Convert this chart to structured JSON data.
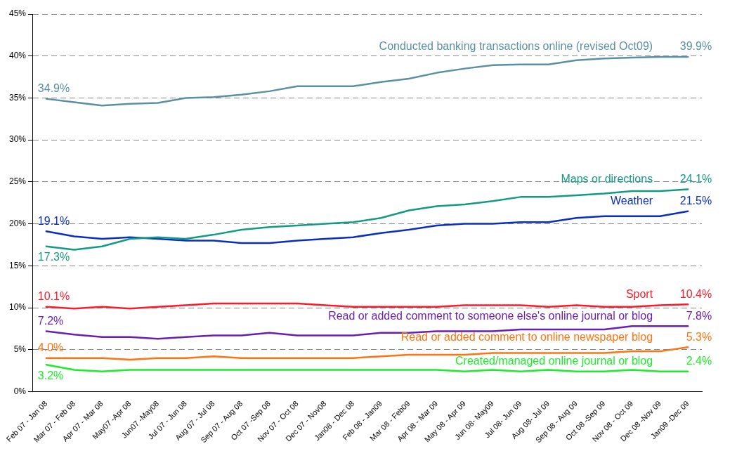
{
  "chart_data": {
    "type": "line",
    "categories": [
      "Feb 07 - Jan 08",
      "Mar 07 - Feb 08",
      "Apr 07 - Mar 08",
      "May07 -Apr 08",
      "Jun07 -May08",
      "Jul 07 - Jun 08",
      "Aug 07 - Jul 08",
      "Sep 07 - Aug 08",
      "Oct 07 -Sep 08",
      "Nov 07 - Oct 08",
      "Dec 07 - Nov08",
      "Jan08 - Dec 08",
      "Feb 08 - Jan09",
      "Mar 08 - Feb09",
      "Apr 08 - Mar 09",
      "May 08 - Apr 09",
      "Jun 08- May09",
      "Jul 08- Jun 09",
      "Aug 08- Jul 09",
      "Sep 08 - Aug 09",
      "Oct 08 -Sep 09",
      "Nov 08 - Oct 09",
      "Dec 08 -Nov 09",
      "Jan09 -Dec 09"
    ],
    "series": [
      {
        "name": "Conducted banking transactions online (revised Oct09)",
        "color": "#5b8fa3",
        "values": [
          34.9,
          34.5,
          34.1,
          34.3,
          34.4,
          35.0,
          35.1,
          35.4,
          35.8,
          36.4,
          36.4,
          36.4,
          36.9,
          37.3,
          38.0,
          38.5,
          38.9,
          39.0,
          39.0,
          39.5,
          39.7,
          39.8,
          39.9,
          39.9
        ],
        "value_labels": [
          "34.9%",
          null,
          null,
          null,
          null,
          null,
          null,
          null,
          null,
          null,
          null,
          null,
          null,
          null,
          null,
          null,
          null,
          null,
          null,
          null,
          null,
          null,
          null,
          "39.9%"
        ]
      },
      {
        "name": "Maps or directions",
        "color": "#139a84",
        "values": [
          17.3,
          16.9,
          17.3,
          18.2,
          18.4,
          18.2,
          18.7,
          19.3,
          19.6,
          19.8,
          20.0,
          20.2,
          20.7,
          21.6,
          22.1,
          22.3,
          22.7,
          23.2,
          23.2,
          23.4,
          23.6,
          23.9,
          23.9,
          24.1
        ],
        "value_labels": [
          "17.3%",
          null,
          null,
          null,
          null,
          null,
          null,
          null,
          null,
          null,
          null,
          null,
          null,
          null,
          null,
          null,
          null,
          null,
          null,
          null,
          null,
          null,
          null,
          "24.1%"
        ]
      },
      {
        "name": "Weather",
        "color": "#0a2fc0",
        "values": [
          19.1,
          18.5,
          18.2,
          18.4,
          18.2,
          18.0,
          18.0,
          17.7,
          17.7,
          18.0,
          18.2,
          18.4,
          18.9,
          19.3,
          19.8,
          20.0,
          20.0,
          20.2,
          20.2,
          20.7,
          20.9,
          20.9,
          20.9,
          21.5
        ],
        "value_labels": [
          "19.1%",
          null,
          null,
          null,
          null,
          null,
          null,
          null,
          null,
          null,
          null,
          null,
          null,
          null,
          null,
          null,
          null,
          null,
          null,
          null,
          null,
          null,
          null,
          "21.5%"
        ]
      },
      {
        "name": "Sport",
        "color": "#ff1a2a",
        "values": [
          10.1,
          9.9,
          10.1,
          9.9,
          10.1,
          10.3,
          10.5,
          10.5,
          10.5,
          10.5,
          10.3,
          10.1,
          10.1,
          10.1,
          10.1,
          10.3,
          10.3,
          10.3,
          10.1,
          10.3,
          10.1,
          10.1,
          10.3,
          10.4
        ],
        "value_labels": [
          "10.1%",
          null,
          null,
          null,
          null,
          null,
          null,
          null,
          null,
          null,
          null,
          null,
          null,
          null,
          null,
          null,
          null,
          null,
          null,
          null,
          null,
          null,
          null,
          "10.4%"
        ]
      },
      {
        "name": "Read or added comment to someone else's online journal or blog",
        "color": "#6a1fb0",
        "values": [
          7.2,
          6.8,
          6.5,
          6.5,
          6.3,
          6.5,
          6.7,
          6.7,
          7.0,
          6.7,
          6.7,
          6.7,
          7.0,
          7.0,
          7.2,
          7.2,
          7.2,
          7.4,
          7.4,
          7.4,
          7.4,
          7.8,
          7.8,
          7.8
        ],
        "value_labels": [
          "7.2%",
          null,
          null,
          null,
          null,
          null,
          null,
          null,
          null,
          null,
          null,
          null,
          null,
          null,
          null,
          null,
          null,
          null,
          null,
          null,
          null,
          null,
          null,
          "7.8%"
        ]
      },
      {
        "name": "Read or added comment to online newspaper blog",
        "color": "#ff7410",
        "values": [
          4.0,
          4.0,
          4.0,
          3.8,
          4.0,
          4.0,
          4.2,
          4.0,
          4.0,
          4.0,
          4.0,
          4.0,
          4.2,
          4.4,
          4.4,
          4.4,
          4.6,
          4.6,
          4.6,
          4.6,
          4.6,
          4.8,
          4.8,
          5.3
        ],
        "value_labels": [
          "4.0%",
          null,
          null,
          null,
          null,
          null,
          null,
          null,
          null,
          null,
          null,
          null,
          null,
          null,
          null,
          null,
          null,
          null,
          null,
          null,
          null,
          null,
          null,
          "5.3%"
        ]
      },
      {
        "name": "Created/managed online journal or blog",
        "color": "#1aee2a",
        "values": [
          3.2,
          2.6,
          2.4,
          2.6,
          2.6,
          2.6,
          2.6,
          2.6,
          2.6,
          2.6,
          2.6,
          2.6,
          2.6,
          2.6,
          2.6,
          2.4,
          2.6,
          2.4,
          2.6,
          2.4,
          2.4,
          2.6,
          2.4,
          2.4
        ],
        "value_labels": [
          "3.2%",
          null,
          null,
          null,
          null,
          null,
          null,
          null,
          null,
          null,
          null,
          null,
          null,
          null,
          null,
          null,
          null,
          null,
          null,
          null,
          null,
          null,
          null,
          "2.4%"
        ]
      }
    ],
    "ylim": [
      0,
      45
    ],
    "yticks": [
      {
        "value": 0,
        "label": "0%"
      },
      {
        "value": 5,
        "label": "5%"
      },
      {
        "value": 10,
        "label": "10%"
      },
      {
        "value": 15,
        "label": "15%"
      },
      {
        "value": 20,
        "label": "20%"
      },
      {
        "value": 25,
        "label": "25%"
      },
      {
        "value": 30,
        "label": "30%"
      },
      {
        "value": 35,
        "label": "35%"
      },
      {
        "value": 40,
        "label": "40%"
      },
      {
        "value": 45,
        "label": "45%"
      }
    ],
    "grid": "y",
    "legend": false,
    "marker": "none",
    "line_style": "solid"
  }
}
